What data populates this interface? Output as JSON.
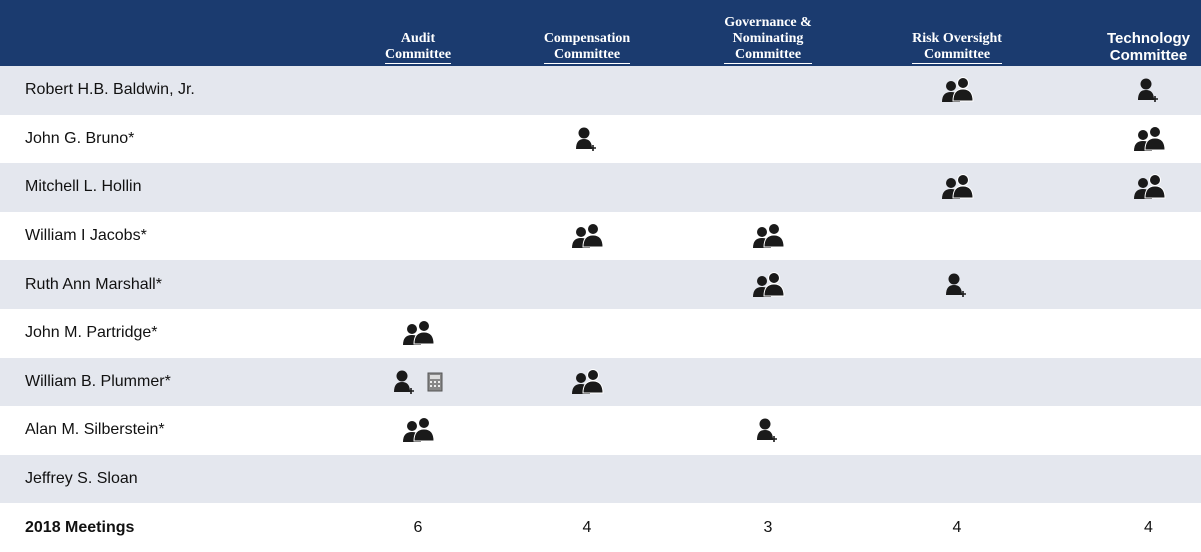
{
  "header": {
    "columns": [
      "Audit\nCommittee",
      "Compensation\nCommittee",
      "Governance &\nNominating\nCommittee",
      "Risk Oversight\nCommittee",
      "Technology\nCommittee"
    ]
  },
  "table": {
    "rows": [
      "Robert H.B. Baldwin, Jr.",
      "John G. Bruno*",
      "Mitchell L. Hollin",
      "William I Jacobs*",
      "Ruth Ann Marshall*",
      "John M. Partridge*",
      "William B. Plummer*",
      "Alan M. Silberstein*",
      "Jeffrey S. Sloan"
    ]
  },
  "meetings": {
    "label": "2018 Meetings",
    "values": [
      6,
      4,
      3,
      4,
      4
    ]
  }
}
